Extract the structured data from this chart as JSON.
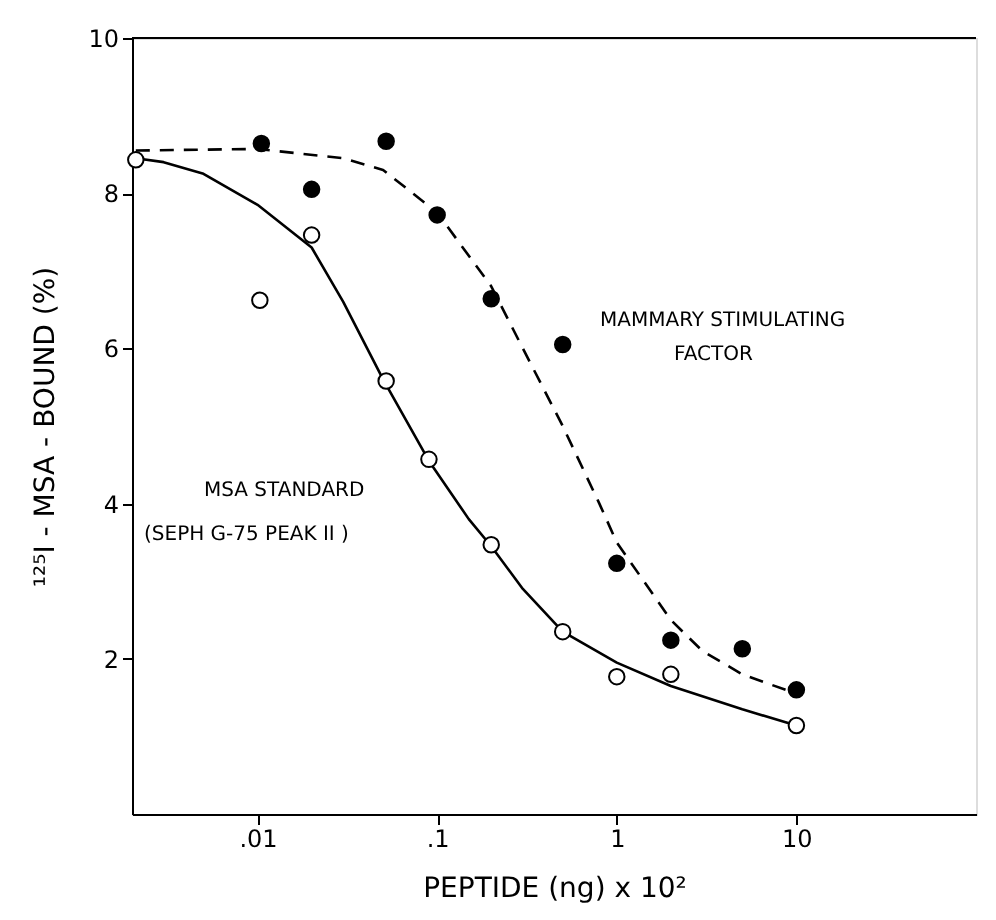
{
  "chart_data": {
    "type": "scatter",
    "xlabel": "PEPTIDE (ng) x 10²",
    "ylabel": "¹²⁵I - MSA - BOUND  (%)",
    "log": "x",
    "xlim": [
      0.002,
      100
    ],
    "xticks": [
      {
        "value": 0.01,
        "label": ".01"
      },
      {
        "value": 0.1,
        "label": ".1"
      },
      1,
      10
    ],
    "ylim": [
      0,
      10
    ],
    "yticks": [
      2,
      4,
      6,
      8,
      10
    ],
    "grid": false,
    "annotations": [
      "MSA  STANDARD",
      "(SEPH G-75 PEAK II )",
      "MAMMARY  STIMULATING",
      "FACTOR"
    ],
    "series": [
      {
        "marker": "circle",
        "color": "#000000",
        "x": [
          0.0021,
          0.0103,
          0.02,
          0.052,
          0.09,
          0.2,
          0.5,
          1,
          2,
          10
        ],
        "values": [
          8.43,
          6.62,
          7.46,
          5.58,
          4.57,
          3.47,
          2.35,
          1.77,
          1.8,
          1.14
        ]
      },
      {
        "marker": "circle",
        "color": "#000000",
        "x": [
          0.0105,
          0.02,
          0.052,
          0.1,
          0.2,
          0.5,
          1,
          2,
          5,
          10
        ],
        "values": [
          8.64,
          8.05,
          8.67,
          7.72,
          6.64,
          6.05,
          3.23,
          2.24,
          2.13,
          1.6
        ]
      },
      {
        "type": "line",
        "marker": "none",
        "line_style": "solid",
        "color": "#000000",
        "x": [
          0.0021,
          0.003,
          0.005,
          0.01,
          0.02,
          0.03,
          0.05,
          0.09,
          0.15,
          0.2,
          0.3,
          0.5,
          1,
          2,
          5,
          10
        ],
        "values": [
          8.45,
          8.4,
          8.25,
          7.85,
          7.3,
          6.6,
          5.6,
          4.55,
          3.8,
          3.45,
          2.9,
          2.35,
          1.95,
          1.65,
          1.35,
          1.14
        ]
      },
      {
        "type": "line",
        "marker": "none",
        "line_style": "dashed",
        "color": "#000000",
        "x": [
          0.0021,
          0.01,
          0.03,
          0.05,
          0.1,
          0.2,
          0.3,
          0.5,
          0.8,
          1,
          2,
          3,
          5,
          10
        ],
        "values": [
          8.55,
          8.57,
          8.45,
          8.3,
          7.75,
          6.8,
          6.0,
          5.0,
          4.0,
          3.5,
          2.5,
          2.1,
          1.8,
          1.55
        ]
      }
    ]
  }
}
